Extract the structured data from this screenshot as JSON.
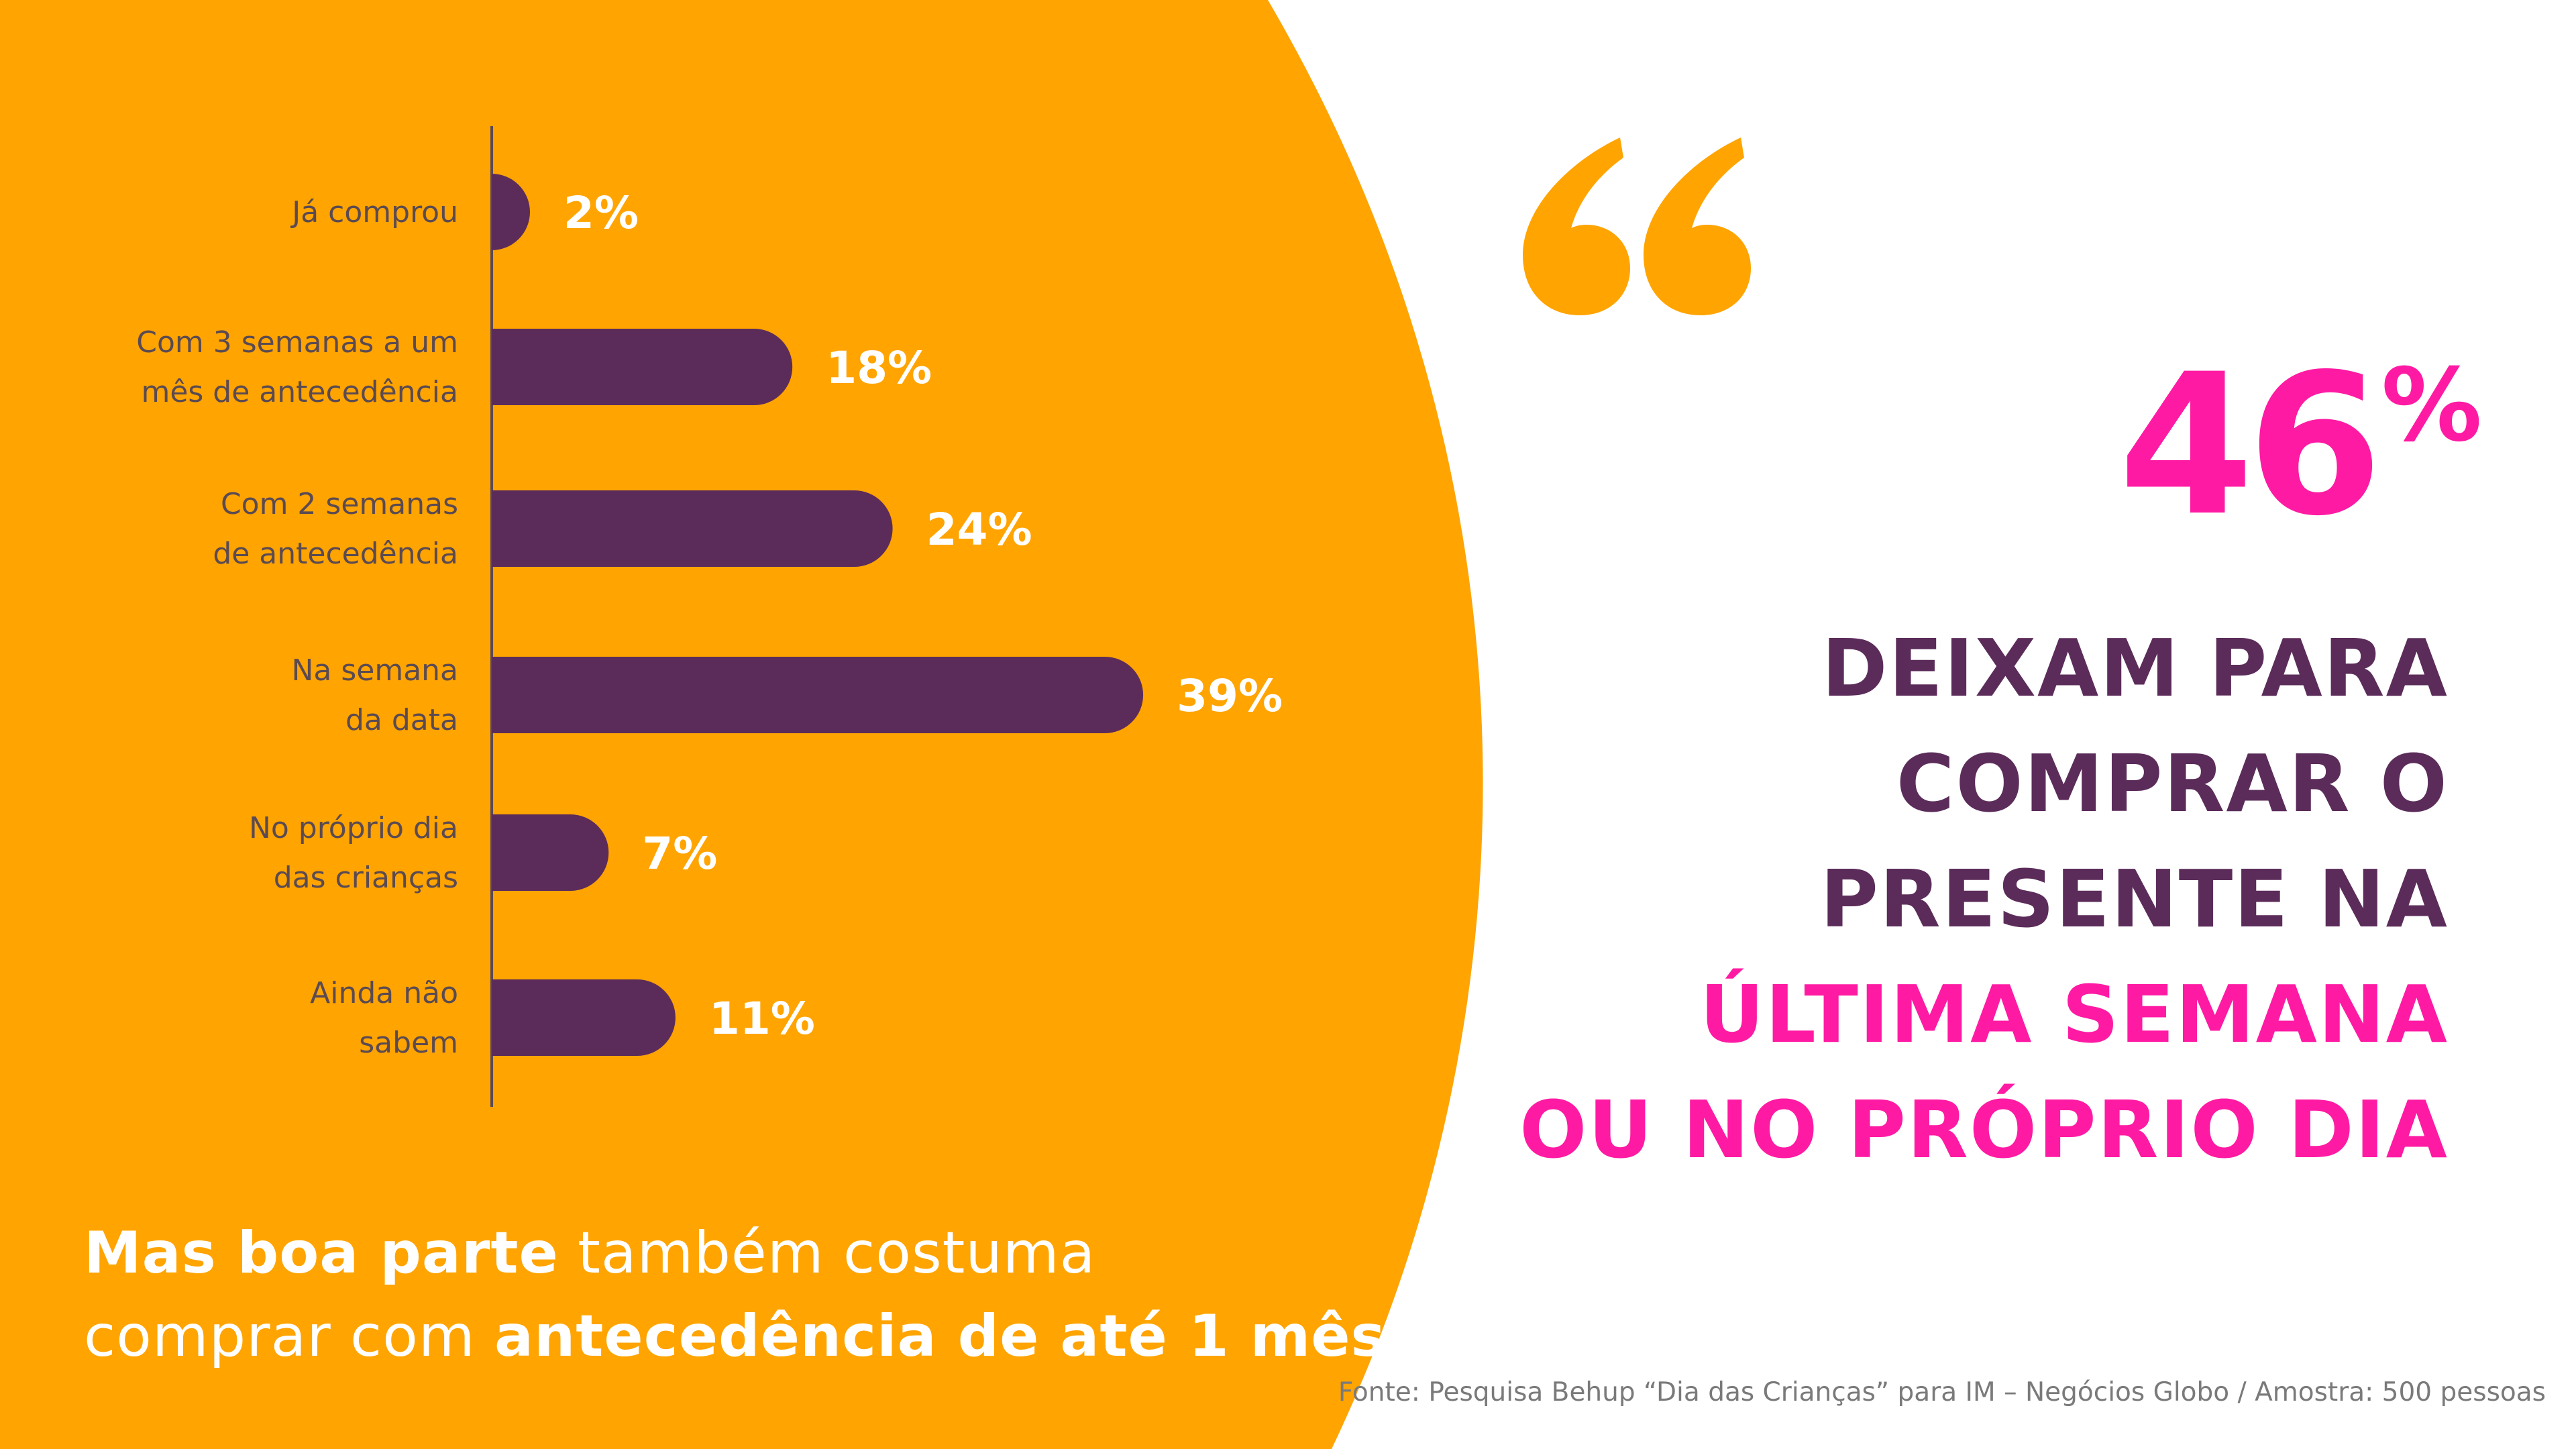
{
  "chart_data": {
    "type": "bar",
    "orientation": "horizontal",
    "categories": [
      [
        "Já comprou"
      ],
      [
        "Com 3 semanas a um",
        "mês de antecedência"
      ],
      [
        "Com 2 semanas",
        "de antecedência"
      ],
      [
        "Na semana",
        "da data"
      ],
      [
        "No próprio dia",
        "das crianças"
      ],
      [
        "Ainda não",
        "sabem"
      ]
    ],
    "values": [
      2,
      18,
      24,
      39,
      7,
      11
    ],
    "value_labels": [
      "2%",
      "18%",
      "24%",
      "39%",
      "7%",
      "11%"
    ],
    "unit": "%",
    "xlim": [
      0,
      60
    ],
    "bar_color": "#5b2c5a",
    "background_color": "#ffa400"
  },
  "summary": {
    "line1_bold": "Mas boa parte",
    "line1_rest": " também costuma",
    "line2_start": "comprar com ",
    "line2_bold": "antecedência de até 1 mês"
  },
  "quote_icon": "quote-open-icon",
  "highlight": {
    "number": "46",
    "percent": "%",
    "lines_dark": [
      "DEIXAM PARA",
      "COMPRAR O",
      "PRESENTE NA"
    ],
    "lines_pink": [
      "ÚLTIMA SEMANA",
      "OU NO PRÓPRIO DIA"
    ]
  },
  "source": "Fonte: Pesquisa Behup “Dia das Crianças” para  IM – Negócios Globo / Amostra: 500 pessoas",
  "colors": {
    "orange": "#ffa400",
    "purple": "#5b2c5a",
    "pink": "#ff1aa3",
    "white": "#ffffff"
  }
}
